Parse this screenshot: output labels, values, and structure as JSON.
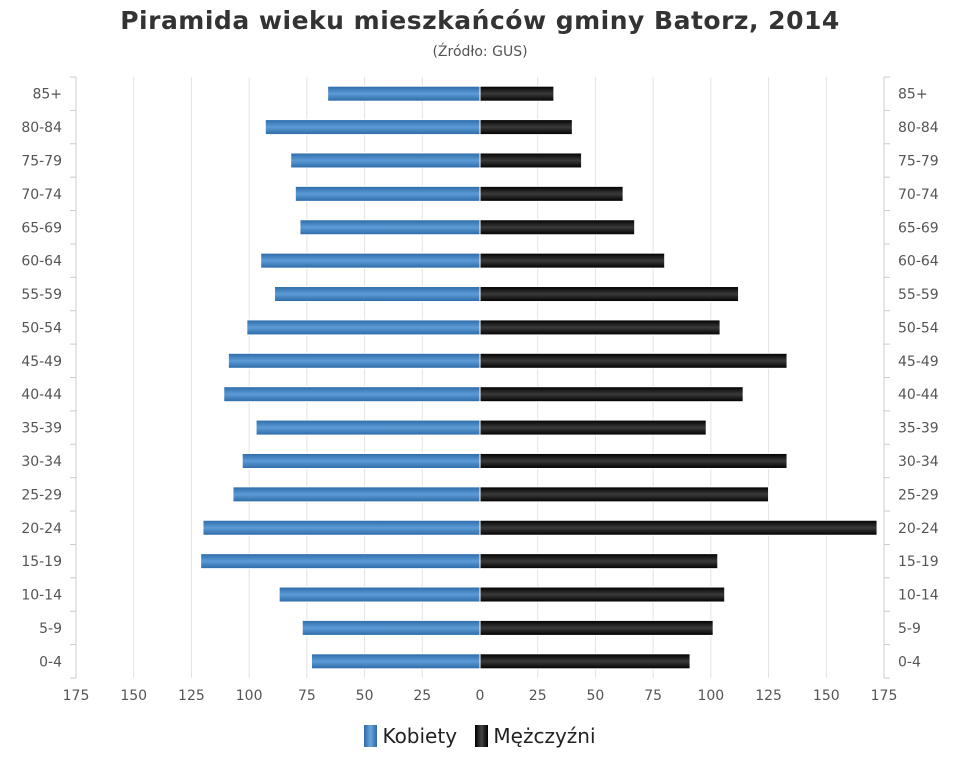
{
  "chart_data": {
    "type": "bar",
    "orientation": "horizontal",
    "title": "Piramida wieku mieszkańców gminy Batorz, 2014",
    "subtitle": "(Źródło: GUS)",
    "categories": [
      "85+",
      "80-84",
      "75-79",
      "70-74",
      "65-69",
      "60-64",
      "55-59",
      "50-54",
      "45-49",
      "40-44",
      "35-39",
      "30-34",
      "25-29",
      "20-24",
      "15-19",
      "10-14",
      "5-9",
      "0-4"
    ],
    "series": [
      {
        "name": "Kobiety",
        "color": "#3d7fc1",
        "side": "left",
        "values": [
          66,
          93,
          82,
          80,
          78,
          95,
          89,
          101,
          109,
          111,
          97,
          103,
          107,
          120,
          121,
          87,
          77,
          73
        ]
      },
      {
        "name": "Mężczyźni",
        "color": "#111111",
        "side": "right",
        "values": [
          32,
          40,
          44,
          62,
          67,
          80,
          112,
          104,
          133,
          114,
          98,
          133,
          125,
          172,
          103,
          106,
          101,
          91
        ]
      }
    ],
    "xlim": [
      -175,
      175
    ],
    "xticks": [
      "175",
      "150",
      "125",
      "100",
      "75",
      "50",
      "25",
      "0",
      "25",
      "50",
      "75",
      "100",
      "125",
      "150",
      "175"
    ],
    "grid": true,
    "legend": "bottom-center"
  }
}
